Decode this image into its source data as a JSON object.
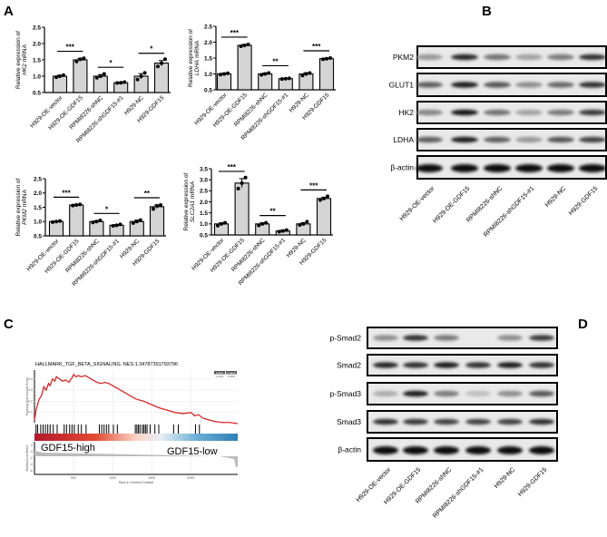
{
  "panels": {
    "A": "A",
    "B": "B",
    "C": "C",
    "D": "D"
  },
  "colors": {
    "bar_fill": "#d4d4d4",
    "gsea_curve": "#d62728",
    "gsea_high": "#d7301f",
    "gsea_low": "#3a8fc7"
  },
  "chart_data": [
    {
      "type": "bar",
      "panel": "A",
      "title": "",
      "ylabel_prefix": "Relative expression of",
      "gene": "HK2",
      "ylabel_suffix": "mRNA",
      "categories": [
        "H929-OE-vector",
        "H929-OE-GDF15",
        "RPMI8226-shNC",
        "RPMI8226-shGDF15-#1",
        "H929-NC",
        "H929-GDF15"
      ],
      "values": [
        1.0,
        1.5,
        1.0,
        0.8,
        1.0,
        1.4
      ],
      "errors": [
        0.03,
        0.04,
        0.05,
        0.02,
        0.08,
        0.08
      ],
      "points": [
        [
          0.97,
          1.0,
          1.03
        ],
        [
          1.45,
          1.52,
          1.55
        ],
        [
          0.95,
          1.0,
          1.07
        ],
        [
          0.79,
          0.8,
          0.82
        ],
        [
          0.9,
          1.0,
          1.1
        ],
        [
          1.3,
          1.4,
          1.52
        ]
      ],
      "ylim": [
        0.5,
        2.5
      ],
      "yticks": [
        "0.5",
        "1.0",
        "1.5",
        "2.0",
        "2.5"
      ],
      "significance": [
        {
          "pair": [
            0,
            1
          ],
          "label": "***"
        },
        {
          "pair": [
            2,
            3
          ],
          "label": "*"
        },
        {
          "pair": [
            4,
            5
          ],
          "label": "*"
        }
      ]
    },
    {
      "type": "bar",
      "panel": "A",
      "title": "",
      "ylabel_prefix": "Relative expression of",
      "gene": "LDHA",
      "ylabel_suffix": "mRNA",
      "categories": [
        "H929-OE-vector",
        "H929-OE-GDF15",
        "RPMI8226-shNC",
        "RPMI8226-shGDF15-#1",
        "H929-NC",
        "H929-GDF15"
      ],
      "values": [
        1.0,
        1.9,
        1.0,
        0.85,
        1.0,
        1.48
      ],
      "errors": [
        0.02,
        0.03,
        0.03,
        0.01,
        0.04,
        0.02
      ],
      "points": [
        [
          0.98,
          1.0,
          1.02
        ],
        [
          1.87,
          1.9,
          1.93
        ],
        [
          0.97,
          1.0,
          1.03
        ],
        [
          0.84,
          0.85,
          0.86
        ],
        [
          0.95,
          1.0,
          1.03
        ],
        [
          1.46,
          1.48,
          1.5
        ]
      ],
      "ylim": [
        0.5,
        2.5
      ],
      "yticks": [
        "0.5",
        "1.0",
        "1.5",
        "2.0",
        "2.5"
      ],
      "significance": [
        {
          "pair": [
            0,
            1
          ],
          "label": "***"
        },
        {
          "pair": [
            2,
            3
          ],
          "label": "**"
        },
        {
          "pair": [
            4,
            5
          ],
          "label": "***"
        }
      ]
    },
    {
      "type": "bar",
      "panel": "A",
      "title": "",
      "ylabel_prefix": "Relative expression of",
      "gene": "PKM2",
      "ylabel_suffix": "mRNA",
      "categories": [
        "H929-OE-vector",
        "H929-OE-GDF15",
        "RPMI8226-shNC",
        "RPMI8226-shGDF15-#1",
        "H929-NC",
        "H929-GDF15"
      ],
      "values": [
        1.0,
        1.58,
        1.0,
        0.87,
        1.0,
        1.52
      ],
      "errors": [
        0.02,
        0.02,
        0.03,
        0.02,
        0.05,
        0.06
      ],
      "points": [
        [
          0.98,
          1.0,
          1.02
        ],
        [
          1.56,
          1.58,
          1.6
        ],
        [
          0.97,
          1.0,
          1.04
        ],
        [
          0.85,
          0.87,
          0.9
        ],
        [
          0.95,
          1.0,
          1.05
        ],
        [
          1.44,
          1.55,
          1.58
        ]
      ],
      "ylim": [
        0.5,
        2.5
      ],
      "yticks": [
        "0.5",
        "1.0",
        "1.5",
        "2.0",
        "2.5"
      ],
      "significance": [
        {
          "pair": [
            0,
            1
          ],
          "label": "***"
        },
        {
          "pair": [
            2,
            3
          ],
          "label": "*"
        },
        {
          "pair": [
            4,
            5
          ],
          "label": "**"
        }
      ]
    },
    {
      "type": "bar",
      "panel": "A",
      "title": "",
      "ylabel_prefix": "Relative expression of",
      "gene": "SLC2A1",
      "ylabel_suffix": "mRNA",
      "categories": [
        "H929-OE-vector",
        "H929-OE-GDF15",
        "RPMI8226-shNC",
        "RPMI8226-shGDF15-#1",
        "H929-NC",
        "H929-GDF15"
      ],
      "values": [
        1.0,
        2.85,
        1.0,
        0.68,
        1.0,
        2.15
      ],
      "errors": [
        0.05,
        0.2,
        0.05,
        0.03,
        0.06,
        0.06
      ],
      "points": [
        [
          0.92,
          1.0,
          1.05
        ],
        [
          2.6,
          2.85,
          3.1
        ],
        [
          0.93,
          1.0,
          1.05
        ],
        [
          0.65,
          0.68,
          0.72
        ],
        [
          0.95,
          1.0,
          1.1
        ],
        [
          2.08,
          2.15,
          2.25
        ]
      ],
      "ylim": [
        0.5,
        3.5
      ],
      "yticks": [
        "0.5",
        "1.0",
        "1.5",
        "2.0",
        "2.5",
        "3.0",
        "3.5"
      ],
      "significance": [
        {
          "pair": [
            0,
            1
          ],
          "label": "***"
        },
        {
          "pair": [
            2,
            3
          ],
          "label": "**"
        },
        {
          "pair": [
            4,
            5
          ],
          "label": "***"
        }
      ]
    },
    {
      "type": "line",
      "panel": "C",
      "title": "HALLMARK_TGF_BETA_SIGNALING. NES:1.34787391793796",
      "ylabel_top": "Running Enrichment Score",
      "ylabel_bottom": "Ranked List Metric",
      "xlabel": "Rank in Ordered Dataset",
      "xticks": [
        "500",
        "1000",
        "1500",
        "2000"
      ],
      "yticks_top": [
        "0.1",
        "0.2",
        "0.3",
        "0.4"
      ],
      "yticks_bottom": [
        "2",
        "0",
        "-2",
        "-4",
        "-6"
      ],
      "xlim": [
        0,
        2600
      ],
      "table": {
        "headers": [
          "pvalue",
          "p.adjust"
        ],
        "values": [
          "0.0142",
          "0.0291"
        ]
      },
      "group_high": "GDF15-high",
      "group_low": "GDF15-low",
      "curve_x": [
        0,
        20,
        60,
        90,
        120,
        150,
        180,
        200,
        230,
        260,
        280,
        320,
        360,
        400,
        440,
        480,
        500,
        530,
        560,
        600,
        650,
        700,
        750,
        800,
        850,
        900,
        950,
        1000,
        1100,
        1200,
        1300,
        1400,
        1500,
        1600,
        1700,
        1800,
        1900,
        2000,
        2050,
        2100,
        2150,
        2200,
        2300,
        2400,
        2500,
        2600
      ],
      "curve_y": [
        0.03,
        0.12,
        0.22,
        0.25,
        0.33,
        0.3,
        0.36,
        0.34,
        0.4,
        0.38,
        0.42,
        0.4,
        0.38,
        0.39,
        0.37,
        0.41,
        0.44,
        0.42,
        0.43,
        0.42,
        0.43,
        0.41,
        0.39,
        0.37,
        0.36,
        0.37,
        0.36,
        0.34,
        0.3,
        0.26,
        0.22,
        0.2,
        0.17,
        0.14,
        0.12,
        0.1,
        0.09,
        0.1,
        0.07,
        0.08,
        0.05,
        0.04,
        0.02,
        0.01,
        0.01,
        0.0
      ],
      "hits": [
        20,
        40,
        80,
        110,
        140,
        170,
        200,
        240,
        290,
        380,
        410,
        450,
        480,
        510,
        560,
        600,
        660,
        830,
        860,
        890,
        920,
        950,
        1010,
        1060,
        1290,
        1310,
        1330,
        1350,
        1380,
        1400,
        1420,
        1440,
        1480,
        1540,
        1590,
        1780,
        1840,
        2060,
        2110
      ]
    }
  ],
  "blot_B": {
    "rows": [
      "PKM2",
      "GLUT1",
      "HK2",
      "LDHA",
      "β-actin"
    ],
    "lanes": [
      "H929-OE-vector",
      "H929-OE-GDF15",
      "RPMI8226-shNC",
      "RPMI8226-shGDF15-#1",
      "H929-NC",
      "H929-GDF15"
    ],
    "intensity": [
      [
        0.25,
        0.85,
        0.45,
        0.2,
        0.4,
        0.8
      ],
      [
        0.55,
        0.9,
        0.6,
        0.3,
        0.5,
        0.8
      ],
      [
        0.35,
        0.95,
        0.45,
        0.2,
        0.4,
        0.75
      ],
      [
        0.55,
        0.9,
        0.55,
        0.25,
        0.6,
        0.7
      ],
      [
        1,
        1,
        1,
        1,
        1,
        1
      ]
    ]
  },
  "blot_D": {
    "rows": [
      "p-Smad2",
      "Smad2",
      "p-Smad3",
      "Smad3",
      "β-actin"
    ],
    "lanes": [
      "H929-OE-vector",
      "H929-OE-GDF15",
      "RPMI8226-shNC",
      "RPMI8226-shGDF15-#1",
      "H929-NC",
      "H929-GDF15"
    ],
    "intensity": [
      [
        0.3,
        0.8,
        0.4,
        0.0,
        0.3,
        0.75
      ],
      [
        0.85,
        0.8,
        0.9,
        0.8,
        0.9,
        0.8
      ],
      [
        0.15,
        0.9,
        0.4,
        0.05,
        0.3,
        0.6
      ],
      [
        0.8,
        0.75,
        0.7,
        0.7,
        0.7,
        0.8
      ],
      [
        1,
        1,
        1,
        1,
        1,
        1
      ]
    ]
  }
}
